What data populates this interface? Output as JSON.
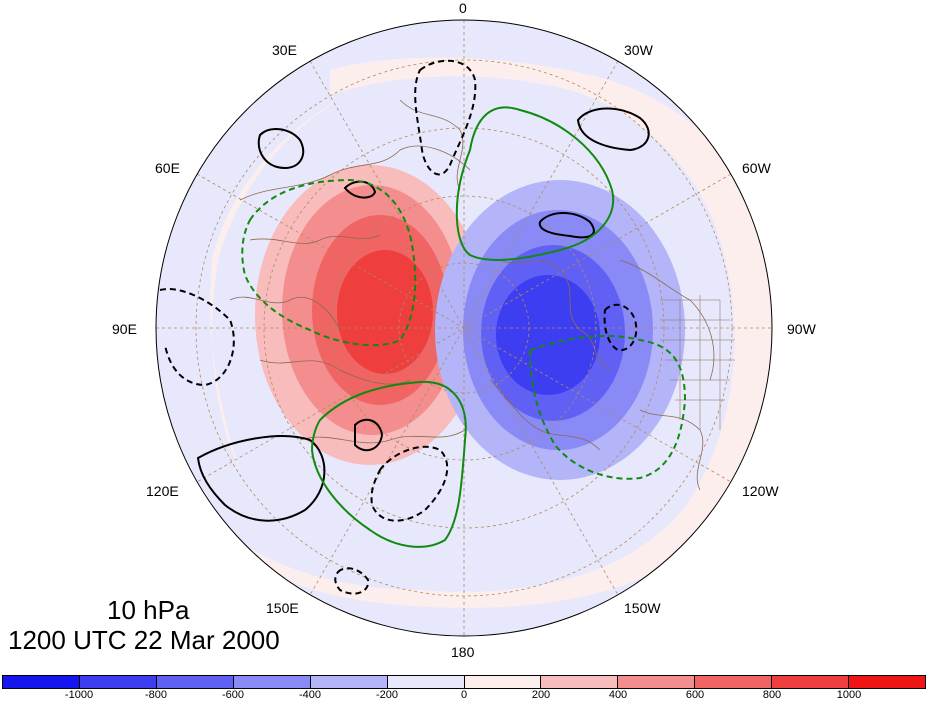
{
  "title": {
    "level": "10 hPa",
    "time": "1200 UTC 22 Mar 2000"
  },
  "longitude_labels": {
    "lon_0": "0",
    "lon_30w": "30W",
    "lon_60w": "60W",
    "lon_90w": "90W",
    "lon_120w": "120W",
    "lon_150w": "150W",
    "lon_180": "180",
    "lon_150e": "150E",
    "lon_120e": "120E",
    "lon_90e": "90E",
    "lon_60e": "60E",
    "lon_30e": "30E"
  },
  "colorbar": {
    "colors": [
      "#1515f0",
      "#3d3df2",
      "#6060f4",
      "#8a8af6",
      "#b4b4f9",
      "#e8e8fc",
      "#fdeeee",
      "#f8bcbc",
      "#f48d8d",
      "#f06464",
      "#ee3e3e",
      "#ef1515"
    ],
    "labels": [
      "-1000",
      "-800",
      "-600",
      "-400",
      "-200",
      "0",
      "200",
      "400",
      "600",
      "800",
      "1000"
    ]
  },
  "contour_colors": {
    "black": "#000000",
    "green": "#108a10"
  }
}
